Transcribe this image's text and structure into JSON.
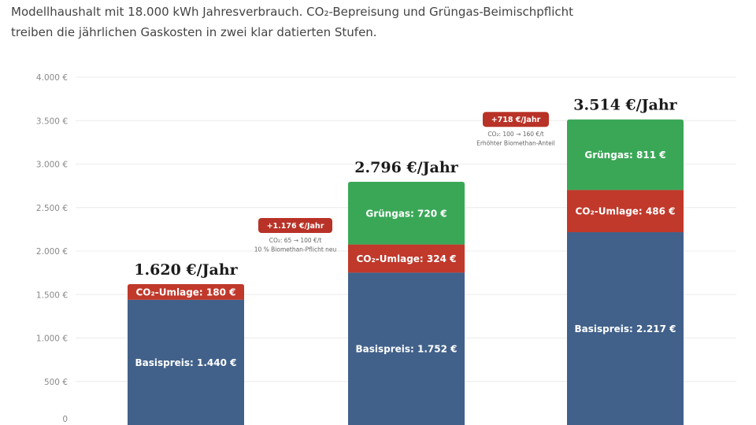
{
  "subtitle": {
    "line1": "Modellhaushalt mit 18.000 kWh Jahresverbrauch. CO₂-Bepreisung und Grüngas-Beimischpflicht",
    "line2": "treiben die jährlichen Gaskosten in zwei klar datierten Stufen."
  },
  "chart_data": {
    "type": "bar",
    "stacked": true,
    "ylim": [
      0,
      4000
    ],
    "yticks": [
      0,
      500,
      1000,
      1500,
      2000,
      2500,
      3000,
      3500,
      4000
    ],
    "ytick_labels": [
      "0",
      "500 €",
      "1.000 €",
      "1.500 €",
      "2.000 €",
      "2.500 €",
      "3.000 €",
      "3.500 €",
      "4.000 €"
    ],
    "grid": true,
    "colors": {
      "basis": "#41618a",
      "co2": "#c0392b",
      "gruengas": "#3aa757"
    },
    "bars": [
      {
        "total_label": "1.620 €/Jahr",
        "segments": [
          {
            "key": "basis",
            "value": 1440,
            "label": "Basispreis: 1.440 €"
          },
          {
            "key": "co2",
            "value": 180,
            "label": "CO₂-Umlage: 180 €"
          }
        ]
      },
      {
        "total_label": "2.796 €/Jahr",
        "segments": [
          {
            "key": "basis",
            "value": 1752,
            "label": "Basispreis: 1.752 €"
          },
          {
            "key": "co2",
            "value": 324,
            "label": "CO₂-Umlage: 324 €"
          },
          {
            "key": "gruengas",
            "value": 720,
            "label": "Grüngas: 720 €"
          }
        ]
      },
      {
        "total_label": "3.514 €/Jahr",
        "segments": [
          {
            "key": "basis",
            "value": 2217,
            "label": "Basispreis: 2.217 €"
          },
          {
            "key": "co2",
            "value": 486,
            "label": "CO₂-Umlage: 486 €"
          },
          {
            "key": "gruengas",
            "value": 811,
            "label": "Grüngas: 811 €"
          }
        ]
      }
    ],
    "annotations": [
      {
        "badge": "+1.176 €/Jahr",
        "lines": [
          "CO₂: 65 → 100 €/t",
          "10 % Biomethan-Pflicht neu"
        ],
        "level": 2380
      },
      {
        "badge": "+718 €/Jahr",
        "lines": [
          "CO₂: 100 → 160 €/t",
          "Erhöhter Biomethan-Anteil"
        ],
        "level": 3600
      }
    ]
  }
}
